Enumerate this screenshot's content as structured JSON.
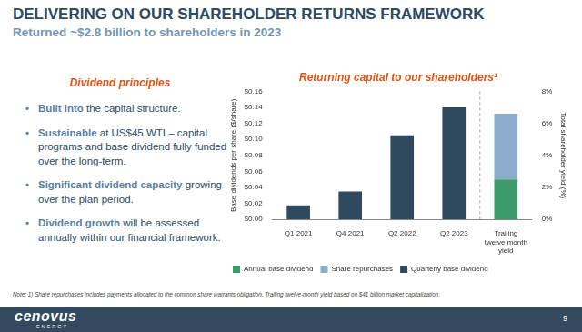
{
  "header": {
    "title": "DELIVERING ON OUR SHAREHOLDER RETURNS FRAMEWORK",
    "subtitle": "Returned ~$2.8 billion to shareholders in 2023"
  },
  "principles": {
    "heading": "Dividend principles",
    "bullets": [
      {
        "lead": "Built into",
        "text": " the capital structure."
      },
      {
        "lead": "Sustainable",
        "text": " at US$45 WTI – capital programs and base dividend fully funded over the long-term."
      },
      {
        "lead": "Significant dividend capacity",
        "text": " growing over the plan period."
      },
      {
        "lead": "Dividend growth",
        "text": " will be assessed annually within our financial framework."
      }
    ]
  },
  "chart_data": {
    "type": "bar",
    "title": "Returning capital to our shareholders¹",
    "categories": [
      "Q1 2021",
      "Q4 2021",
      "Q2 2022",
      "Q2 2023",
      "Trailing twelve month yield"
    ],
    "y_label": "Base dividends per share ($/share)",
    "y2_label": "Total shareholder yield (%)",
    "ylim": [
      0,
      0.16
    ],
    "yticks": [
      {
        "value": 0,
        "label": "$0.00"
      },
      {
        "value": 0.02,
        "label": "$0.02"
      },
      {
        "value": 0.04,
        "label": "$0.04"
      },
      {
        "value": 0.06,
        "label": "$0.06"
      },
      {
        "value": 0.08,
        "label": "$0.08"
      },
      {
        "value": 0.1,
        "label": "$0.10"
      },
      {
        "value": 0.12,
        "label": "$0.12"
      },
      {
        "value": 0.14,
        "label": "$0.14"
      },
      {
        "value": 0.16,
        "label": "$0.16"
      }
    ],
    "y2lim": [
      0,
      8
    ],
    "y2ticks": [
      {
        "value": 0,
        "label": "0%"
      },
      {
        "value": 2,
        "label": "2%"
      },
      {
        "value": 4,
        "label": "4%"
      },
      {
        "value": 6,
        "label": "6%"
      },
      {
        "value": 8,
        "label": "8%"
      }
    ],
    "stacked": true,
    "grid": false,
    "legend": "bottom",
    "series": [
      {
        "name": "Annual base dividend",
        "color": "#3d9b6b",
        "axis": "y2",
        "values": [
          null,
          null,
          null,
          null,
          2.5
        ]
      },
      {
        "name": "Share repurchases",
        "color": "#8daecb",
        "axis": "y2",
        "values": [
          null,
          null,
          null,
          null,
          4.1
        ]
      },
      {
        "name": "Quarterly base dividend",
        "color": "#2f4a5f",
        "values": [
          0.0175,
          0.035,
          0.105,
          0.14,
          null
        ]
      }
    ]
  },
  "footnote": "Note: 1) Share repurchases includes payments allocated to the common share warrants obligation. Trailing twelve-month yield based on $41 billion market capitalization.",
  "footer": {
    "logo": "cenovus",
    "logo_sub": "ENERGY",
    "page": 9
  }
}
